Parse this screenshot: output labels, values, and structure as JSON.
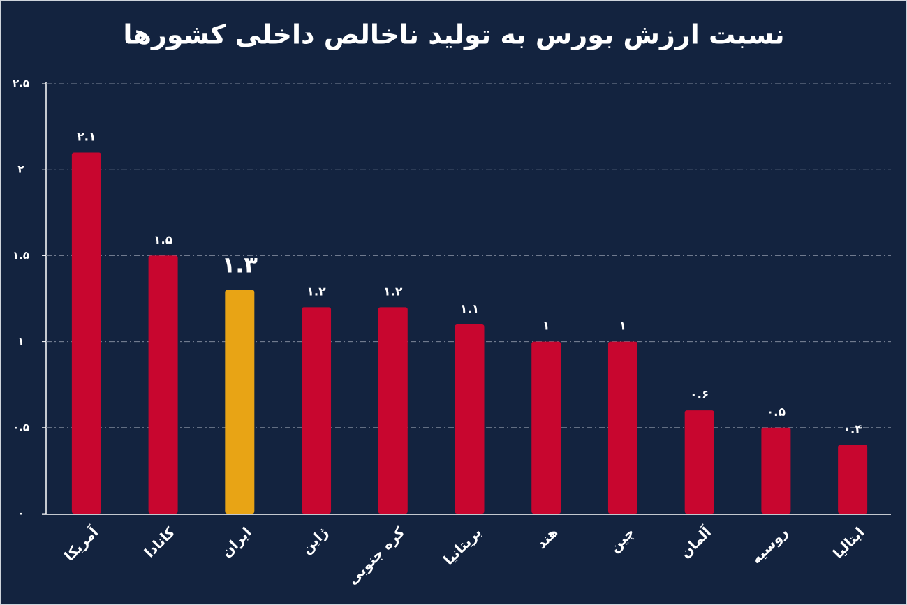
{
  "chart_data": {
    "type": "bar",
    "title": "نسبت ارزش بورس به تولید ناخالص داخلی کشورها",
    "categories": [
      "آمریکا",
      "کانادا",
      "ایران",
      "ژاپن",
      "کره جنوبی",
      "بریتانیا",
      "هند",
      "چین",
      "آلمان",
      "روسیه",
      "ایتالیا"
    ],
    "values": [
      2.1,
      1.5,
      1.3,
      1.2,
      1.2,
      1.1,
      1,
      1,
      0.6,
      0.5,
      0.4
    ],
    "value_labels": [
      "۲.۱",
      "۱.۵",
      "۱.۳",
      "۱.۲",
      "۱.۲",
      "۱.۱",
      "۱",
      "۱",
      "۰.۶",
      "۰.۵",
      "۰.۴"
    ],
    "colors": [
      "#c8062f",
      "#c8062f",
      "#e8a415",
      "#c8062f",
      "#c8062f",
      "#c8062f",
      "#c8062f",
      "#c8062f",
      "#c8062f",
      "#c8062f",
      "#c8062f"
    ],
    "ylim": [
      0,
      2.5
    ],
    "yticks": [
      {
        "value": 0,
        "label": "۰"
      },
      {
        "value": 0.5,
        "label": "۰.۵"
      },
      {
        "value": 1,
        "label": "۱"
      },
      {
        "value": 1.5,
        "label": "۱.۵"
      },
      {
        "value": 2,
        "label": "۲"
      },
      {
        "value": 2.5,
        "label": "۲.۵"
      }
    ],
    "grid": true
  }
}
